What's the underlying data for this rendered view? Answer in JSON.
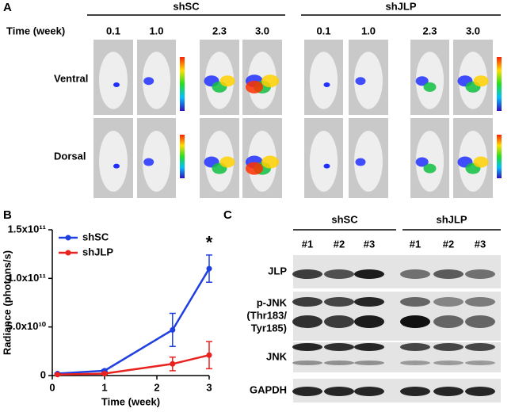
{
  "panel_a": {
    "label": "A",
    "groups": [
      "shSC",
      "shJLP"
    ],
    "time_label": "Time (week)",
    "times": [
      "0.1",
      "1.0",
      "2.3",
      "3.0"
    ],
    "rows": [
      "Ventral",
      "Dorsal"
    ]
  },
  "chart_data": {
    "type": "line",
    "panel_label": "B",
    "x_label": "Time (week)",
    "y_label": "Radiance (photons/s)",
    "x": [
      0.1,
      1.0,
      2.3,
      3.0
    ],
    "xlim": [
      0,
      3
    ],
    "xticks": [
      0,
      1,
      2,
      3
    ],
    "ylim": [
      0,
      150000000000
    ],
    "yticks": [
      0,
      {
        "value": 50000000000,
        "label": "5.0x10¹⁰"
      },
      {
        "value": 100000000000,
        "label": "1.0x10¹¹"
      },
      {
        "value": 150000000000,
        "label": "1.5x10¹¹"
      }
    ],
    "series": [
      {
        "name": "shSC",
        "color": "#1f3fe0",
        "values": [
          2000000000,
          5000000000,
          47000000000,
          110000000000
        ],
        "errors": [
          500000000,
          1000000000,
          17000000000,
          14000000000
        ]
      },
      {
        "name": "shJLP",
        "color": "#e8231f",
        "values": [
          1000000000,
          2000000000,
          12000000000,
          21000000000
        ],
        "errors": [
          500000000,
          1000000000,
          7000000000,
          14000000000
        ]
      }
    ],
    "legend": "upper left",
    "annotation": "*"
  },
  "panel_c": {
    "label": "C",
    "groups": [
      "shSC",
      "shJLP"
    ],
    "lanes": [
      "#1",
      "#2",
      "#3",
      "#1",
      "#2",
      "#3"
    ],
    "rows": [
      [
        "JLP"
      ],
      [
        "p-JNK",
        "(Thr183/",
        "Tyr185)"
      ],
      [
        "JNK"
      ],
      [
        "GAPDH"
      ]
    ]
  }
}
